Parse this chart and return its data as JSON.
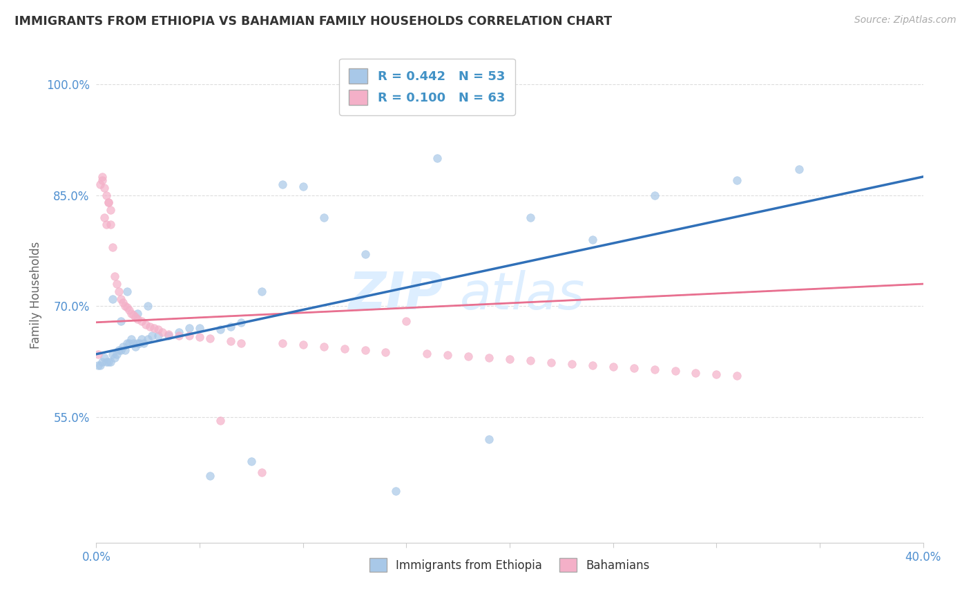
{
  "title": "IMMIGRANTS FROM ETHIOPIA VS BAHAMIAN FAMILY HOUSEHOLDS CORRELATION CHART",
  "source": "Source: ZipAtlas.com",
  "ylabel": "Family Households",
  "xlim": [
    0.0,
    0.4
  ],
  "ylim": [
    0.38,
    1.05
  ],
  "xticks": [
    0.0,
    0.05,
    0.1,
    0.15,
    0.2,
    0.25,
    0.3,
    0.35,
    0.4
  ],
  "xticklabels": [
    "0.0%",
    "",
    "",
    "",
    "",
    "",
    "",
    "",
    "40.0%"
  ],
  "yticks": [
    0.55,
    0.7,
    0.85,
    1.0
  ],
  "yticklabels": [
    "55.0%",
    "70.0%",
    "85.0%",
    "100.0%"
  ],
  "legend1_label": "R = 0.442   N = 53",
  "legend2_label": "R = 0.100   N = 63",
  "series1_color": "#a8c8e8",
  "series2_color": "#f4b0c8",
  "line1_color": "#3070b8",
  "line2_color": "#e87090",
  "line2_dash_color": "#e8a0b0",
  "blue_scatter_x": [
    0.001,
    0.002,
    0.003,
    0.004,
    0.005,
    0.006,
    0.007,
    0.008,
    0.009,
    0.01,
    0.011,
    0.012,
    0.013,
    0.014,
    0.015,
    0.016,
    0.017,
    0.018,
    0.019,
    0.02,
    0.021,
    0.022,
    0.023,
    0.025,
    0.027,
    0.03,
    0.035,
    0.04,
    0.045,
    0.05,
    0.055,
    0.06,
    0.065,
    0.07,
    0.075,
    0.08,
    0.09,
    0.1,
    0.11,
    0.13,
    0.145,
    0.165,
    0.19,
    0.21,
    0.24,
    0.27,
    0.31,
    0.34,
    0.015,
    0.025,
    0.008,
    0.012,
    0.02
  ],
  "blue_scatter_y": [
    0.62,
    0.62,
    0.625,
    0.63,
    0.625,
    0.625,
    0.625,
    0.635,
    0.63,
    0.635,
    0.64,
    0.64,
    0.645,
    0.64,
    0.65,
    0.65,
    0.655,
    0.65,
    0.645,
    0.65,
    0.65,
    0.655,
    0.65,
    0.655,
    0.66,
    0.66,
    0.66,
    0.665,
    0.67,
    0.67,
    0.47,
    0.668,
    0.672,
    0.678,
    0.49,
    0.72,
    0.865,
    0.862,
    0.82,
    0.77,
    0.45,
    0.9,
    0.52,
    0.82,
    0.79,
    0.85,
    0.87,
    0.885,
    0.72,
    0.7,
    0.71,
    0.68,
    0.69
  ],
  "pink_scatter_x": [
    0.001,
    0.002,
    0.003,
    0.004,
    0.005,
    0.006,
    0.007,
    0.008,
    0.009,
    0.01,
    0.011,
    0.012,
    0.013,
    0.014,
    0.015,
    0.016,
    0.017,
    0.018,
    0.019,
    0.02,
    0.022,
    0.024,
    0.026,
    0.028,
    0.03,
    0.032,
    0.035,
    0.04,
    0.045,
    0.05,
    0.055,
    0.06,
    0.065,
    0.07,
    0.08,
    0.09,
    0.1,
    0.11,
    0.12,
    0.13,
    0.14,
    0.15,
    0.16,
    0.17,
    0.18,
    0.19,
    0.2,
    0.21,
    0.22,
    0.23,
    0.24,
    0.25,
    0.26,
    0.27,
    0.28,
    0.29,
    0.3,
    0.31,
    0.003,
    0.004,
    0.005,
    0.006,
    0.007
  ],
  "pink_scatter_y": [
    0.635,
    0.865,
    0.875,
    0.82,
    0.81,
    0.84,
    0.81,
    0.78,
    0.74,
    0.73,
    0.72,
    0.71,
    0.705,
    0.7,
    0.698,
    0.695,
    0.69,
    0.688,
    0.685,
    0.682,
    0.68,
    0.675,
    0.672,
    0.67,
    0.668,
    0.665,
    0.662,
    0.66,
    0.66,
    0.658,
    0.656,
    0.545,
    0.653,
    0.65,
    0.475,
    0.65,
    0.648,
    0.645,
    0.642,
    0.64,
    0.638,
    0.68,
    0.636,
    0.634,
    0.632,
    0.63,
    0.628,
    0.626,
    0.624,
    0.622,
    0.62,
    0.618,
    0.616,
    0.614,
    0.612,
    0.61,
    0.608,
    0.606,
    0.87,
    0.86,
    0.85,
    0.84,
    0.83
  ]
}
